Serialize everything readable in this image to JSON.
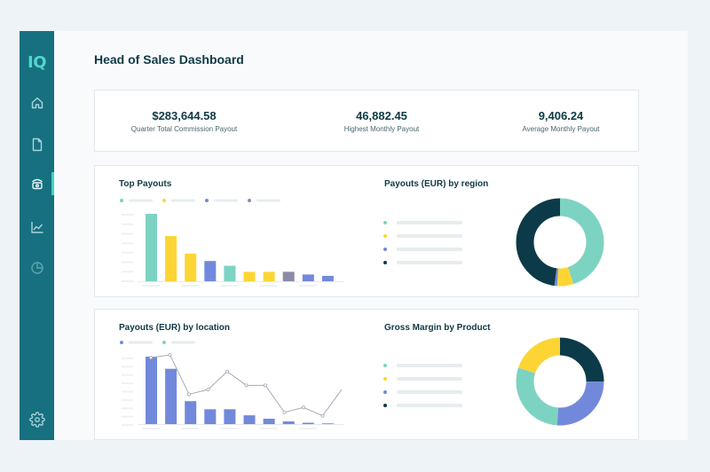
{
  "app": {
    "logo": "IQ",
    "title": "Head of Sales Dashboard"
  },
  "colors": {
    "teal": "#7dd3c1",
    "yellow": "#fcd535",
    "blue": "#7289db",
    "gray": "#8c8aa7",
    "dark": "#0c3a48",
    "sidebar": "#17707f",
    "accent": "#3fd5c2"
  },
  "sidebar": {
    "items": [
      {
        "icon": "home-icon"
      },
      {
        "icon": "document-icon"
      },
      {
        "icon": "payout-icon",
        "active": true
      },
      {
        "icon": "line-chart-icon"
      },
      {
        "icon": "pie-chart-icon"
      }
    ],
    "footer_icon": "gear-icon"
  },
  "stats": [
    {
      "value": "$283,644.58",
      "label": "Quarter Total Commission Payout"
    },
    {
      "value": "46,882.45",
      "label": "Highest Monthly Payout"
    },
    {
      "value": "9,406.24",
      "label": "Average Monthly Payout"
    }
  ],
  "chart_data": [
    {
      "type": "bar",
      "title": "Top Payouts",
      "legend_colors": [
        "#7dd3c1",
        "#fcd535",
        "#7289db",
        "#8c8aa7"
      ],
      "values": [
        100,
        67,
        41,
        30,
        23,
        14,
        14,
        14,
        10,
        8
      ],
      "colors": [
        "#7dd3c1",
        "#fcd535",
        "#fcd535",
        "#7289db",
        "#7dd3c1",
        "#fcd535",
        "#fcd535",
        "#8c8aa7",
        "#7289db",
        "#7289db"
      ],
      "ylim": [
        0,
        100
      ]
    },
    {
      "type": "pie",
      "title": "Payouts (EUR) by region",
      "legend_colors": [
        "#7dd3c1",
        "#fcd535",
        "#7289db",
        "#0c3a48"
      ],
      "values": [
        45,
        6,
        1,
        48
      ],
      "colors": [
        "#7dd3c1",
        "#fcd535",
        "#7289db",
        "#0c3a48"
      ]
    },
    {
      "type": "bar",
      "title": "Payouts (EUR) by location",
      "legend_colors": [
        "#7289db",
        "#7dd3c1"
      ],
      "series": [
        {
          "name": "bars",
          "type": "bar",
          "color": "#7289db",
          "values": [
            100,
            82,
            34,
            22,
            22,
            13,
            8,
            4,
            2,
            1
          ]
        },
        {
          "name": "line",
          "type": "line",
          "color": "#a3abb5",
          "values": [
            96,
            100,
            43,
            50,
            76,
            56,
            56,
            17,
            24,
            12,
            50
          ]
        }
      ],
      "ylim": [
        0,
        100
      ]
    },
    {
      "type": "pie",
      "title": "Gross Margin by Product",
      "legend_colors": [
        "#7dd3c1",
        "#fcd535",
        "#7289db",
        "#0c3a48"
      ],
      "values": [
        25,
        26,
        29,
        20
      ],
      "colors": [
        "#0c3a48",
        "#7289db",
        "#7dd3c1",
        "#fcd535"
      ]
    }
  ]
}
